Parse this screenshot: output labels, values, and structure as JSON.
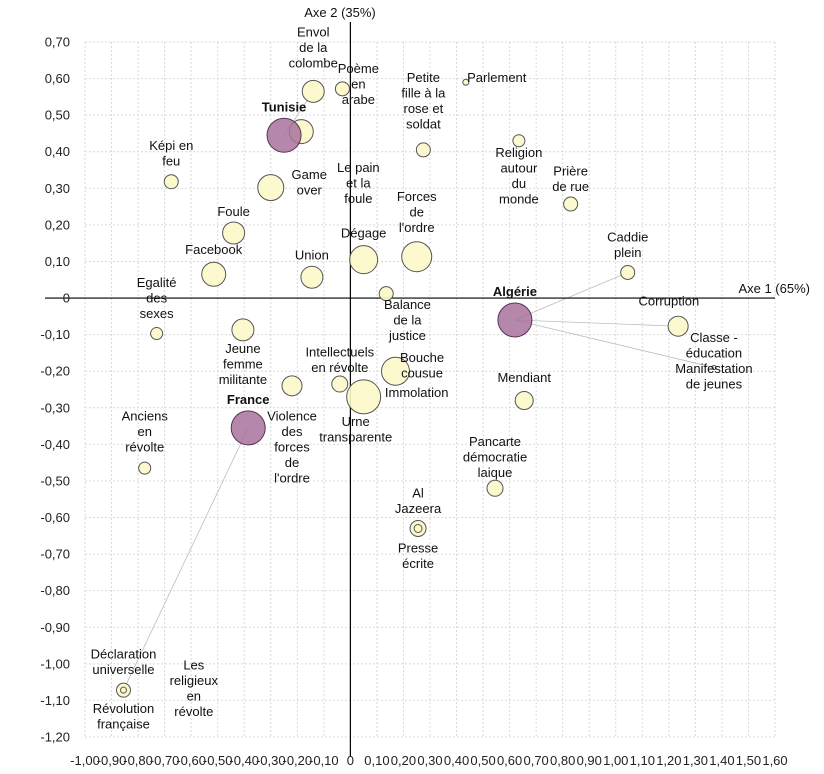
{
  "colors": {
    "point_fill": "#fdf8c9",
    "point_stroke": "#555555",
    "group_fill": "#a8729b",
    "group_stroke": "#5a3354"
  },
  "chart_data": {
    "type": "scatter",
    "xlabel": "Axe 1 (65%)",
    "ylabel": "Axe 2 (35%)",
    "xlim": [
      -1.0,
      1.6
    ],
    "ylim": [
      -1.2,
      0.7
    ],
    "xticks": [
      "-1,00",
      "-0,90",
      "-0,80",
      "-0,70",
      "-0,60",
      "-0,50",
      "-0,40",
      "-0,30",
      "-0,20",
      "-0,10",
      "0",
      "0,10",
      "0,20",
      "0,30",
      "0,40",
      "0,50",
      "0,60",
      "0,70",
      "0,80",
      "0,90",
      "1,00",
      "1,10",
      "1,20",
      "1,30",
      "1,40",
      "1,50",
      "1,60"
    ],
    "yticks": [
      "0,70",
      "0,60",
      "0,50",
      "0,40",
      "0,30",
      "0,20",
      "0,10",
      "0",
      "-0,10",
      "-0,20",
      "-0,30",
      "-0,40",
      "-0,50",
      "-0,60",
      "-0,70",
      "-0,80",
      "-0,90",
      "-1,00",
      "-1,10",
      "-1,20"
    ],
    "grid": true,
    "groups": [
      {
        "label": "Tunisie",
        "x": -0.25,
        "y": 0.445,
        "r": 17,
        "lx": -0.25,
        "ly": 0.51,
        "anchor": "middle"
      },
      {
        "label": "Algérie",
        "x": 0.62,
        "y": -0.06,
        "r": 17,
        "lx": 0.62,
        "ly": 0.005,
        "anchor": "middle"
      },
      {
        "label": "France",
        "x": -0.385,
        "y": -0.355,
        "r": 17,
        "lx": -0.385,
        "ly": -0.29,
        "anchor": "middle"
      }
    ],
    "points": [
      {
        "label": "Envol\nde la\ncolombe",
        "x": -0.14,
        "y": 0.565,
        "r": 11,
        "lx": -0.14,
        "ly": 0.715,
        "anchor": "middle"
      },
      {
        "label": "Poème\nen\narabe",
        "x": -0.03,
        "y": 0.572,
        "r": 7,
        "lx": 0.03,
        "ly": 0.615,
        "anchor": "middle"
      },
      {
        "label": "Parlement",
        "x": 0.435,
        "y": 0.59,
        "r": 3,
        "lx": 0.44,
        "ly": 0.59,
        "anchor": "start"
      },
      {
        "label": "Petite\nfille à la\nrose et\nsoldat",
        "x": 0.275,
        "y": 0.405,
        "r": 7,
        "lx": 0.275,
        "ly": 0.59,
        "anchor": "middle"
      },
      {
        "label": "",
        "x": -0.185,
        "y": 0.455,
        "r": 12
      },
      {
        "label": "Religion\nautour\ndu\nmonde",
        "x": 0.635,
        "y": 0.43,
        "r": 6,
        "lx": 0.635,
        "ly": 0.385,
        "anchor": "middle"
      },
      {
        "label": "Képi en\nfeu",
        "x": -0.675,
        "y": 0.318,
        "r": 7,
        "lx": -0.675,
        "ly": 0.405,
        "anchor": "middle"
      },
      {
        "label": "Game\nover",
        "x": -0.3,
        "y": 0.302,
        "r": 13,
        "lx": -0.155,
        "ly": 0.325,
        "anchor": "middle"
      },
      {
        "label": "Le pain\net la\nfoule",
        "x": 0.03,
        "y": 0.3,
        "r": 0,
        "lx": 0.03,
        "ly": 0.345,
        "anchor": "middle"
      },
      {
        "label": "Prière\nde rue",
        "x": 0.83,
        "y": 0.257,
        "r": 7,
        "lx": 0.83,
        "ly": 0.335,
        "anchor": "middle"
      },
      {
        "label": "Forces\nde\nl'ordre",
        "x": 0.25,
        "y": 0.113,
        "r": 15,
        "lx": 0.25,
        "ly": 0.265,
        "anchor": "middle"
      },
      {
        "label": "Foule",
        "x": -0.44,
        "y": 0.178,
        "r": 11,
        "lx": -0.44,
        "ly": 0.225,
        "anchor": "middle"
      },
      {
        "label": "Dégage",
        "x": 0.05,
        "y": 0.105,
        "r": 14,
        "lx": 0.05,
        "ly": 0.165,
        "anchor": "middle"
      },
      {
        "label": "Caddie\nplein",
        "x": 1.045,
        "y": 0.07,
        "r": 7,
        "lx": 1.045,
        "ly": 0.155,
        "anchor": "middle"
      },
      {
        "label": "Facebook",
        "x": -0.515,
        "y": 0.065,
        "r": 12,
        "lx": -0.515,
        "ly": 0.12,
        "anchor": "middle"
      },
      {
        "label": "Union",
        "x": -0.145,
        "y": 0.057,
        "r": 11,
        "lx": -0.145,
        "ly": 0.105,
        "anchor": "middle"
      },
      {
        "label": "Egalité\ndes\nsexes",
        "x": -0.73,
        "y": -0.097,
        "r": 6,
        "lx": -0.73,
        "ly": 0.03,
        "anchor": "middle"
      },
      {
        "label": "Balance\nde la\njustice",
        "x": 0.135,
        "y": 0.012,
        "r": 7,
        "lx": 0.215,
        "ly": -0.03,
        "anchor": "middle"
      },
      {
        "label": "Corruption",
        "x": 1.235,
        "y": -0.077,
        "r": 10,
        "lx": 1.2,
        "ly": -0.02,
        "anchor": "middle"
      },
      {
        "label": "Classe -\néducation\nManifestation\nde jeunes",
        "x": 1.37,
        "y": -0.19,
        "r": 2,
        "lx": 1.37,
        "ly": -0.12,
        "anchor": "middle"
      },
      {
        "label": "Jeune\nfemme\nmilitante",
        "x": -0.405,
        "y": -0.087,
        "r": 11,
        "lx": -0.405,
        "ly": -0.15,
        "anchor": "middle"
      },
      {
        "label": "Intellectuels\nen révolte",
        "x": -0.04,
        "y": -0.235,
        "r": 8,
        "lx": -0.04,
        "ly": -0.16,
        "anchor": "middle"
      },
      {
        "label": "Bouche\ncousue",
        "x": 0.17,
        "y": -0.2,
        "r": 14,
        "lx": 0.27,
        "ly": -0.175,
        "anchor": "middle"
      },
      {
        "label": "",
        "x": -0.22,
        "y": -0.24,
        "r": 10
      },
      {
        "label": "Immolation",
        "x": 0.05,
        "y": -0.27,
        "r": 17,
        "lx": 0.13,
        "ly": -0.27,
        "anchor": "start"
      },
      {
        "label": "Mendiant",
        "x": 0.655,
        "y": -0.28,
        "r": 9,
        "lx": 0.655,
        "ly": -0.23,
        "anchor": "middle"
      },
      {
        "label": "Violence\ndes\nforces\nde\nl'ordre",
        "x": -0.385,
        "y": -0.355,
        "r": 0,
        "lx": -0.22,
        "ly": -0.335,
        "anchor": "middle"
      },
      {
        "label": "Urne\ntransparente",
        "x": 0.05,
        "y": -0.27,
        "r": 0,
        "lx": 0.02,
        "ly": -0.35,
        "anchor": "middle"
      },
      {
        "label": "Anciens\nen\nrévolte",
        "x": -0.775,
        "y": -0.465,
        "r": 6,
        "lx": -0.775,
        "ly": -0.335,
        "anchor": "middle"
      },
      {
        "label": "Pancarte\ndémocratie\nlaique",
        "x": 0.545,
        "y": -0.52,
        "r": 8,
        "lx": 0.545,
        "ly": -0.405,
        "anchor": "middle"
      },
      {
        "label": "Al\nJazeera",
        "x": 0.255,
        "y": -0.63,
        "r": 8,
        "lx": 0.255,
        "ly": -0.545,
        "anchor": "middle"
      },
      {
        "label": "Presse\nécrite",
        "x": 0.255,
        "y": -0.63,
        "r": 4,
        "lx": 0.255,
        "ly": -0.695,
        "anchor": "middle"
      },
      {
        "label": "Déclaration\nuniverselle",
        "x": -0.855,
        "y": -1.072,
        "r": 7,
        "lx": -0.855,
        "ly": -0.985,
        "anchor": "middle"
      },
      {
        "label": "Révolution\nfrançaise",
        "x": -0.855,
        "y": -1.072,
        "r": 3,
        "lx": -0.855,
        "ly": -1.135,
        "anchor": "middle"
      },
      {
        "label": "Les\nreligieux\nen\nrévolte",
        "x": -0.59,
        "y": -1.0,
        "r": 0,
        "lx": -0.59,
        "ly": -1.015,
        "anchor": "middle"
      }
    ],
    "links": [
      {
        "from": [
          -0.25,
          0.445
        ],
        "to": [
          -0.14,
          0.565
        ]
      },
      {
        "from": [
          0.62,
          -0.06
        ],
        "to": [
          1.045,
          0.07
        ]
      },
      {
        "from": [
          0.62,
          -0.06
        ],
        "to": [
          1.235,
          -0.077
        ]
      },
      {
        "from": [
          0.62,
          -0.06
        ],
        "to": [
          1.37,
          -0.19
        ]
      },
      {
        "from": [
          -0.385,
          -0.355
        ],
        "to": [
          -0.855,
          -1.072
        ]
      }
    ]
  }
}
